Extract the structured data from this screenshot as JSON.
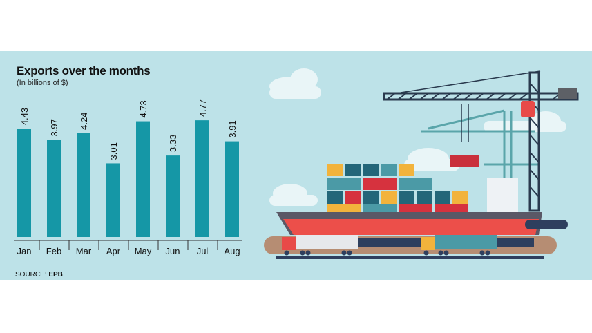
{
  "chart_data": {
    "type": "bar",
    "title": "Exports over the months",
    "subtitle": "(In billions of $)",
    "categories": [
      "Jan",
      "Feb",
      "Mar",
      "Apr",
      "May",
      "Jun",
      "Jul",
      "Aug"
    ],
    "values": [
      4.43,
      3.97,
      4.24,
      3.01,
      4.73,
      3.33,
      4.77,
      3.91
    ],
    "data_labels": [
      "4.43",
      "3.97",
      "4.24",
      "3.01",
      "4.73",
      "3.33",
      "4.77",
      "3.91"
    ],
    "xlabel": "",
    "ylabel": "",
    "ylim": [
      0,
      5
    ],
    "grid": false,
    "bar_color": "#1597a6",
    "background_color": "#bde2e8"
  },
  "source": {
    "label": "SOURCE:",
    "value": "EPB"
  }
}
